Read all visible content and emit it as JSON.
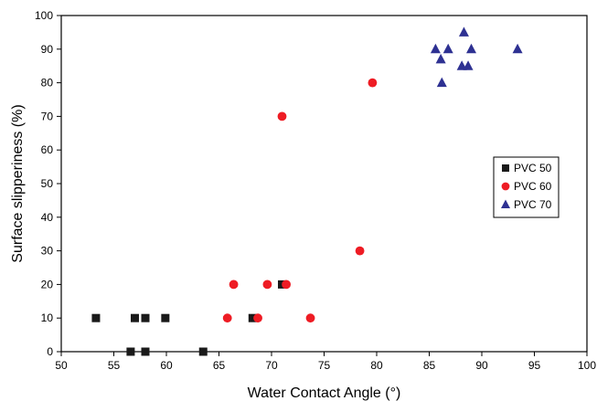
{
  "chart_data": {
    "type": "scatter",
    "xlabel": "Water Contact Angle (°)",
    "ylabel": "Surface slipperiness (%)",
    "xlim": [
      50,
      100
    ],
    "ylim": [
      0,
      100
    ],
    "xticks": [
      50,
      55,
      60,
      65,
      70,
      75,
      80,
      85,
      90,
      95,
      100
    ],
    "yticks": [
      0,
      10,
      20,
      30,
      40,
      50,
      60,
      70,
      80,
      90,
      100
    ],
    "grid": false,
    "legend": {
      "placement": "right-middle"
    },
    "series": [
      {
        "name": "PVC 50",
        "marker": "square",
        "color": "#1a1a1a",
        "points": [
          [
            53.3,
            10
          ],
          [
            57.0,
            10
          ],
          [
            58.0,
            10
          ],
          [
            59.9,
            10
          ],
          [
            56.6,
            0
          ],
          [
            58.0,
            0
          ],
          [
            63.5,
            0
          ],
          [
            68.2,
            10
          ],
          [
            71.0,
            20
          ]
        ]
      },
      {
        "name": "PVC 60",
        "marker": "circle",
        "color": "#ee1c24",
        "points": [
          [
            65.8,
            10
          ],
          [
            66.4,
            20
          ],
          [
            68.7,
            10
          ],
          [
            69.6,
            20
          ],
          [
            71.0,
            70
          ],
          [
            71.4,
            20
          ],
          [
            73.7,
            10
          ],
          [
            78.4,
            30
          ],
          [
            79.6,
            80
          ]
        ]
      },
      {
        "name": "PVC 70",
        "marker": "triangle",
        "color": "#2e3192",
        "points": [
          [
            85.6,
            90
          ],
          [
            86.1,
            87
          ],
          [
            86.2,
            80
          ],
          [
            86.8,
            90
          ],
          [
            88.1,
            85
          ],
          [
            88.3,
            95
          ],
          [
            88.7,
            85
          ],
          [
            89.0,
            90
          ],
          [
            93.4,
            90
          ]
        ]
      }
    ]
  }
}
